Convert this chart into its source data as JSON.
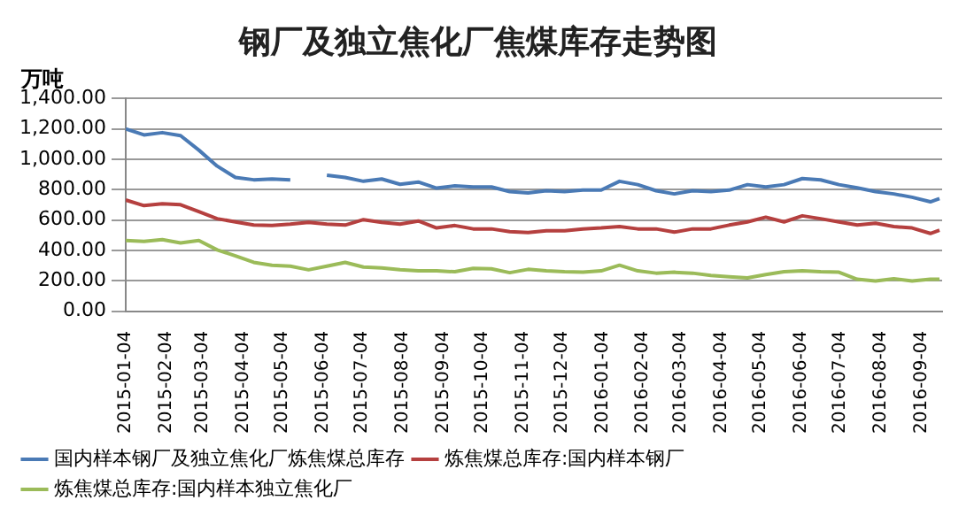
{
  "chart_data": {
    "type": "line",
    "title": "钢厂及独立焦化厂焦煤库存走势图",
    "ylabel": "万吨",
    "x": [
      "2015-01-04",
      "2015-01-18",
      "2015-02-01",
      "2015-02-15",
      "2015-03-01",
      "2015-03-15",
      "2015-03-29",
      "2015-04-12",
      "2015-04-26",
      "2015-05-10",
      "2015-05-24",
      "2015-06-07",
      "2015-06-21",
      "2015-07-05",
      "2015-07-19",
      "2015-08-02",
      "2015-08-16",
      "2015-08-30",
      "2015-09-13",
      "2015-09-27",
      "2015-10-11",
      "2015-10-25",
      "2015-11-08",
      "2015-11-22",
      "2015-12-06",
      "2015-12-20",
      "2016-01-03",
      "2016-01-17",
      "2016-01-31",
      "2016-02-14",
      "2016-02-28",
      "2016-03-13",
      "2016-03-27",
      "2016-04-10",
      "2016-04-24",
      "2016-05-08",
      "2016-05-22",
      "2016-06-05",
      "2016-06-19",
      "2016-07-03",
      "2016-07-17",
      "2016-07-31",
      "2016-08-14",
      "2016-08-28",
      "2016-09-11",
      "2016-09-18"
    ],
    "series": [
      {
        "name": "国内样本钢厂及独立焦化厂炼焦煤总库存",
        "color": "#4a7ab5",
        "values": [
          1200,
          1160,
          1175,
          1155,
          1060,
          955,
          880,
          865,
          870,
          865,
          null,
          895,
          880,
          855,
          870,
          835,
          850,
          810,
          825,
          818,
          818,
          787,
          778,
          793,
          787,
          797,
          797,
          855,
          833,
          793,
          772,
          793,
          787,
          797,
          833,
          818,
          833,
          873,
          864,
          833,
          812,
          787,
          772,
          750,
          720,
          741
        ]
      },
      {
        "name": "炼焦煤总库存:国内样本钢厂",
        "color": "#b5403f",
        "values": [
          732,
          695,
          707,
          701,
          655,
          609,
          588,
          567,
          564,
          573,
          585,
          573,
          567,
          603,
          585,
          573,
          594,
          548,
          564,
          542,
          542,
          524,
          518,
          530,
          530,
          542,
          548,
          557,
          542,
          542,
          521,
          542,
          542,
          567,
          588,
          619,
          588,
          628,
          609,
          588,
          567,
          579,
          557,
          548,
          512,
          533
        ]
      },
      {
        "name": "炼焦煤总库存:国内样本独立焦化厂",
        "color": "#9bbb59",
        "values": [
          466,
          460,
          472,
          450,
          466,
          404,
          365,
          322,
          303,
          297,
          273,
          297,
          322,
          291,
          285,
          273,
          266,
          266,
          260,
          282,
          279,
          254,
          276,
          266,
          260,
          257,
          266,
          303,
          266,
          251,
          257,
          251,
          236,
          227,
          220,
          242,
          260,
          266,
          260,
          257,
          211,
          199,
          214,
          199,
          211,
          211
        ]
      }
    ],
    "xlim": [
      "2015-01-04",
      "2016-09-20"
    ],
    "xticks": [
      "2015-01-04",
      "2015-02-04",
      "2015-03-04",
      "2015-04-04",
      "2015-05-04",
      "2015-06-04",
      "2015-07-04",
      "2015-08-04",
      "2015-09-04",
      "2015-10-04",
      "2015-11-04",
      "2015-12-04",
      "2016-01-04",
      "2016-02-04",
      "2016-03-04",
      "2016-04-04",
      "2016-05-04",
      "2016-06-04",
      "2016-07-04",
      "2016-08-04",
      "2016-09-04"
    ],
    "ylim": [
      0,
      1400
    ],
    "yticks": [
      {
        "value": 0,
        "label": "0.00"
      },
      {
        "value": 200,
        "label": "200.00"
      },
      {
        "value": 400,
        "label": "400.00"
      },
      {
        "value": 600,
        "label": "600.00"
      },
      {
        "value": 800,
        "label": "800.00"
      },
      {
        "value": 1000,
        "label": "1,000.00"
      },
      {
        "value": 1200,
        "label": "1,200.00"
      },
      {
        "value": 1400,
        "label": "1,400.00"
      }
    ],
    "grid": "y",
    "legend": "bottom",
    "marker": "none"
  }
}
